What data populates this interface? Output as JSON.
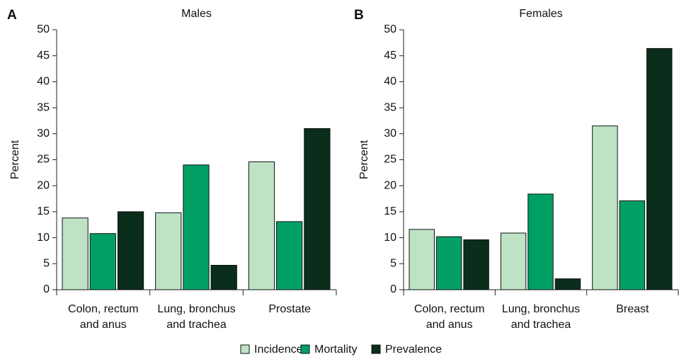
{
  "chart_data": [
    {
      "type": "bar",
      "panel": "A",
      "title": "Males",
      "ylabel": "Percent",
      "categories": [
        [
          "Colon, rectum",
          "and anus"
        ],
        [
          "Lung, bronchus",
          "and trachea"
        ],
        [
          "Prostate"
        ]
      ],
      "series": [
        {
          "name": "Incidence",
          "color": "#bde3c4",
          "values": [
            13.8,
            14.8,
            24.6
          ]
        },
        {
          "name": "Mortality",
          "color": "#00a064",
          "values": [
            10.8,
            24.0,
            13.1
          ]
        },
        {
          "name": "Prevalence",
          "color": "#0b2d1c",
          "values": [
            15.0,
            4.7,
            31.0
          ]
        }
      ],
      "ylim": [
        0,
        50
      ],
      "yticks": [
        0,
        5,
        10,
        15,
        20,
        25,
        30,
        35,
        40,
        45,
        50
      ],
      "grid": false
    },
    {
      "type": "bar",
      "panel": "B",
      "title": "Females",
      "ylabel": "Percent",
      "categories": [
        [
          "Colon, rectum",
          "and anus"
        ],
        [
          "Lung, bronchus",
          "and trachea"
        ],
        [
          "Breast"
        ]
      ],
      "series": [
        {
          "name": "Incidence",
          "color": "#bde3c4",
          "values": [
            11.6,
            10.9,
            31.5
          ]
        },
        {
          "name": "Mortality",
          "color": "#00a064",
          "values": [
            10.2,
            18.4,
            17.1
          ]
        },
        {
          "name": "Prevalence",
          "color": "#0b2d1c",
          "values": [
            9.6,
            2.1,
            46.4
          ]
        }
      ],
      "ylim": [
        0,
        50
      ],
      "yticks": [
        0,
        5,
        10,
        15,
        20,
        25,
        30,
        35,
        40,
        45,
        50
      ],
      "grid": false
    }
  ]
}
